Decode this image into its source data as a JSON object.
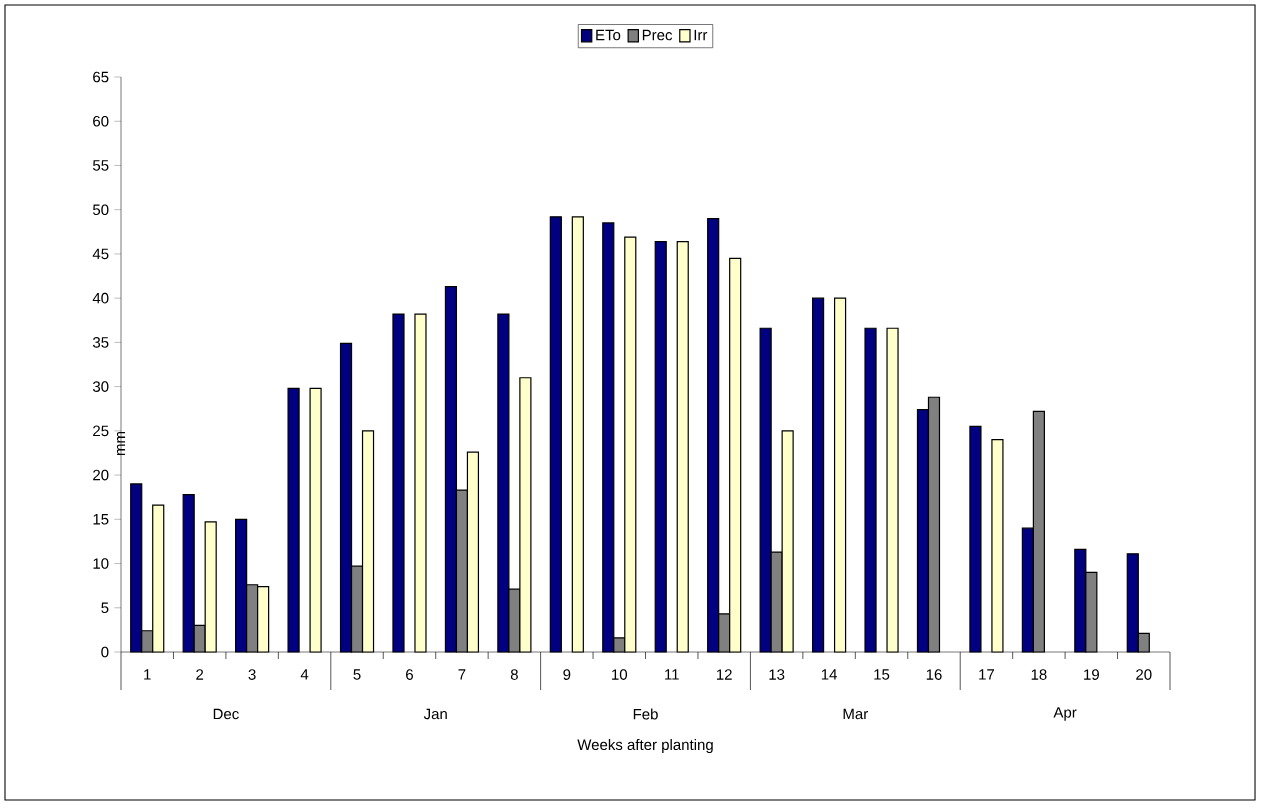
{
  "chart_data": {
    "type": "bar",
    "xlabel": "Weeks after planting",
    "ylabel": "mm",
    "categories": [
      "1",
      "2",
      "3",
      "4",
      "5",
      "6",
      "7",
      "8",
      "9",
      "10",
      "11",
      "12",
      "13",
      "14",
      "15",
      "16",
      "17",
      "18",
      "19",
      "20"
    ],
    "series": [
      {
        "name": "ETo",
        "color": "#000080",
        "values": [
          19,
          17.8,
          15,
          29.8,
          34.9,
          38.2,
          41.3,
          38.2,
          49.2,
          48.5,
          46.4,
          49,
          36.6,
          40,
          36.6,
          27.4,
          25.5,
          14,
          11.6,
          11.1
        ]
      },
      {
        "name": "Prec",
        "color": "#808080",
        "values": [
          2.4,
          3,
          7.6,
          null,
          9.7,
          null,
          18.3,
          7.1,
          null,
          1.6,
          null,
          4.3,
          11.3,
          null,
          null,
          28.8,
          null,
          27.2,
          9,
          2.1
        ]
      },
      {
        "name": "Irr",
        "color": "#ffffcc",
        "values": [
          16.6,
          14.7,
          7.4,
          29.8,
          25,
          38.2,
          22.6,
          31,
          49.2,
          46.9,
          46.4,
          44.5,
          25,
          40,
          36.6,
          null,
          24,
          null,
          null,
          null
        ]
      }
    ],
    "ylim": [
      0,
      65
    ],
    "yticks": [
      0,
      5,
      10,
      15,
      20,
      25,
      30,
      35,
      40,
      45,
      50,
      55,
      60,
      65
    ],
    "legend": "top",
    "annotations": [
      "Dec",
      "Jan",
      "Feb",
      "Mar",
      "Apr"
    ]
  }
}
